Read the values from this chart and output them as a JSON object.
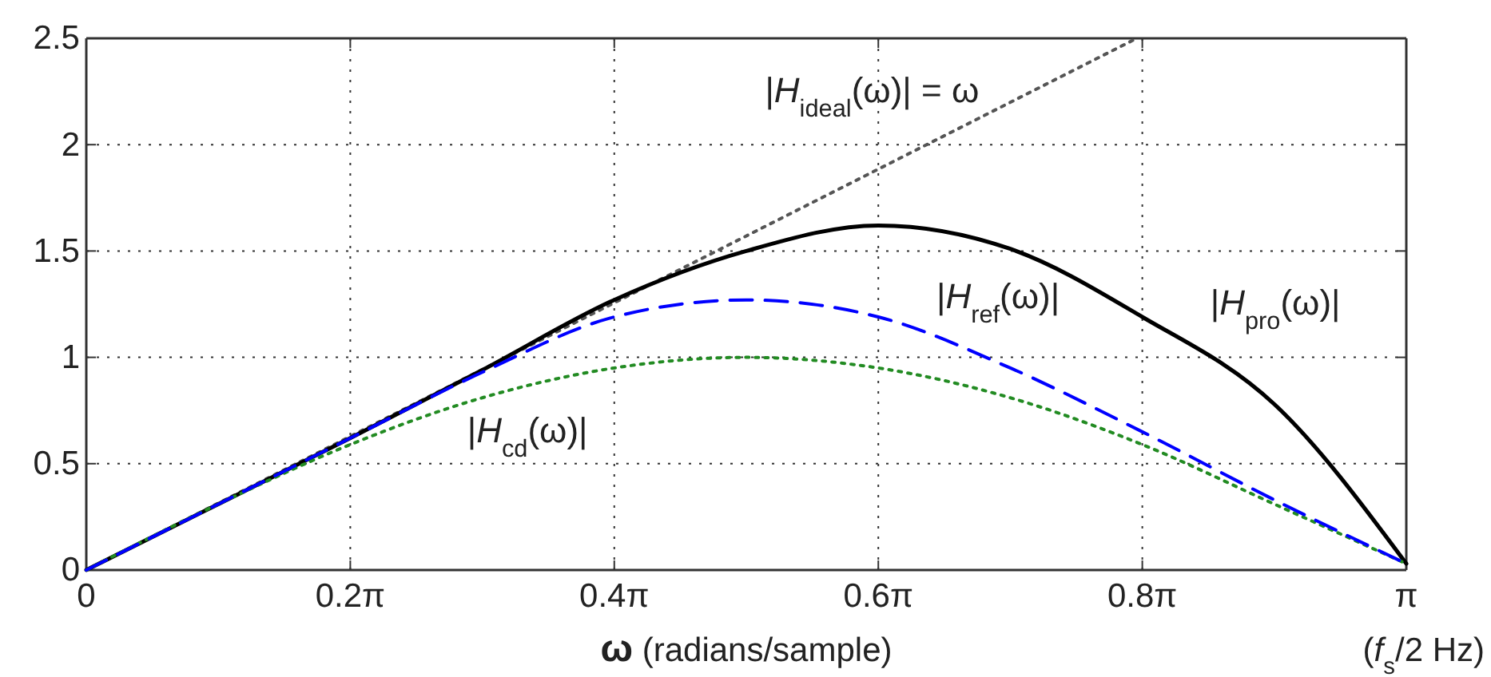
{
  "chart_data": {
    "type": "line",
    "xlabel": "ω (radians/sample)",
    "x": [
      0,
      0.3142,
      0.6283,
      0.9425,
      1.2566,
      1.5708,
      1.885,
      2.1991,
      2.5133,
      2.8274,
      3.1416
    ],
    "series": [
      {
        "name": "|H$_{ideal}$(ω)| = ω",
        "color": "#555555",
        "line_style": "dotted",
        "x": [
          0,
          2.5
        ],
        "values": [
          0,
          2.5
        ]
      },
      {
        "name": "|H$_{pro}$(ω)|",
        "color": "#000000",
        "line_style": "solid",
        "values": [
          0,
          0.31,
          0.62,
          0.94,
          1.27,
          1.5,
          1.62,
          1.51,
          1.19,
          0.78,
          0.03
        ]
      },
      {
        "name": "|H$_{cd}$(ω)|",
        "color": "#228b22",
        "line_style": "dotted",
        "values": [
          0,
          0.31,
          0.59,
          0.81,
          0.95,
          1,
          0.95,
          0.81,
          0.59,
          0.31,
          0.03
        ]
      },
      {
        "name": "|H$_{ref}$(ω)|",
        "color": "#0000ff",
        "line_style": "dashed",
        "values": [
          0,
          0.31,
          0.62,
          0.93,
          1.19,
          1.27,
          1.19,
          0.95,
          0.65,
          0.33,
          0.03
        ]
      }
    ],
    "xlim": [
      0,
      3.1416
    ],
    "ylim": [
      0,
      2.5
    ],
    "xticks": [
      {
        "value": 0,
        "label": "0"
      },
      {
        "value": 0.6283,
        "label": "0.2π"
      },
      {
        "value": 1.2566,
        "label": "0.4π"
      },
      {
        "value": 1.885,
        "label": "0.6π"
      },
      {
        "value": 2.5133,
        "label": "0.8π"
      },
      {
        "value": 3.1416,
        "label": "π"
      }
    ],
    "yticks": [
      0,
      0.5,
      1,
      1.5,
      2,
      2.5
    ],
    "grid": true,
    "annotations": [
      "(f$_{s}$/2 Hz)"
    ]
  }
}
